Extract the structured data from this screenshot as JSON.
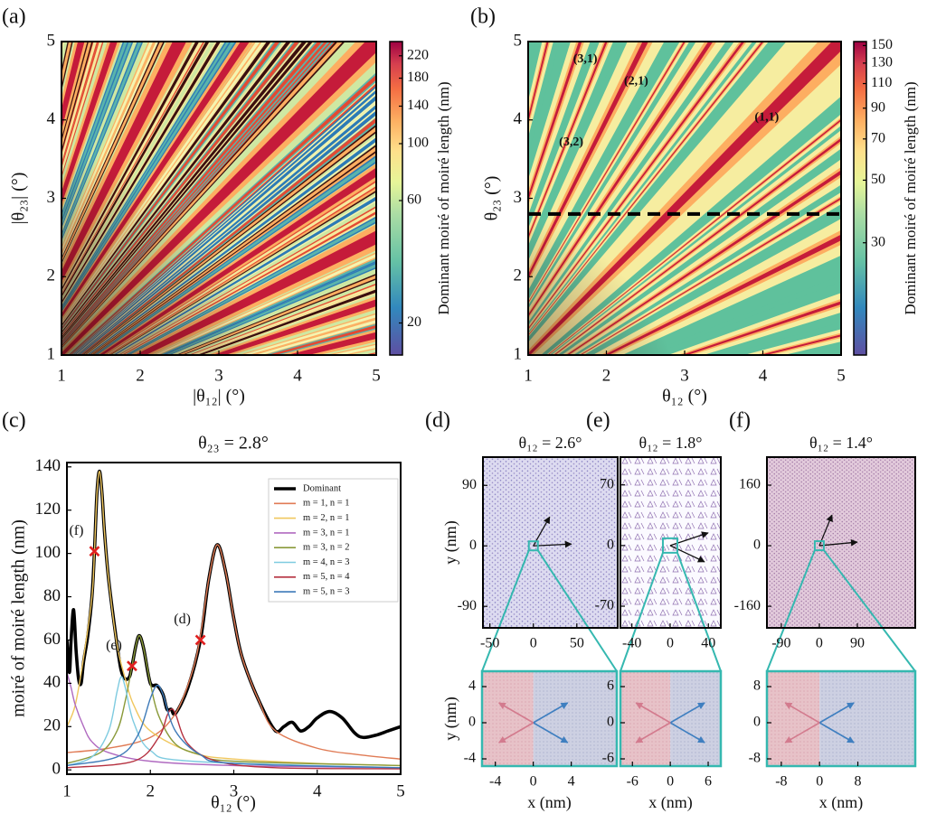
{
  "chart_data": [
    {
      "type": "contour",
      "panel": "(a)",
      "xlabel": "|θ₁₂| (°)",
      "ylabel": "|θ₂₃| (°)",
      "xlim": [
        1,
        5
      ],
      "ylim": [
        1,
        5
      ],
      "xticks": [
        1,
        2,
        3,
        4,
        5
      ],
      "yticks": [
        1,
        2,
        3,
        4,
        5
      ],
      "colorbar": {
        "label": "Dominant moiré of moiré length (nm)",
        "lim": [
          15,
          250
        ],
        "ticks": [
          20,
          60,
          100,
          140,
          180,
          220
        ],
        "scale": "log"
      }
    },
    {
      "type": "contour",
      "panel": "(b)",
      "xlabel": "θ₁₂ (°)",
      "ylabel": "θ₂₃ (°)",
      "xlim": [
        1,
        5
      ],
      "ylim": [
        1,
        5
      ],
      "xticks": [
        1,
        2,
        3,
        4,
        5
      ],
      "yticks": [
        1,
        2,
        3,
        4,
        5
      ],
      "hline": 2.8,
      "annotations": [
        {
          "text": "(3,1)",
          "x": 1.73,
          "y": 4.77,
          "color": "#111111"
        },
        {
          "text": "(2,1)",
          "x": 2.38,
          "y": 4.49,
          "color": "#111111"
        },
        {
          "text": "(1,1)",
          "x": 4.05,
          "y": 4.03,
          "color": "#111111"
        },
        {
          "text": "(3,2)",
          "x": 1.55,
          "y": 3.71,
          "color": "#ffffff"
        }
      ],
      "colorbar": {
        "label": "Dominant moiré of moiré length (nm)",
        "lim": [
          12,
          155
        ],
        "ticks": [
          30,
          50,
          70,
          90,
          110,
          130,
          150
        ],
        "scale": "log"
      }
    },
    {
      "type": "line",
      "panel": "(c)",
      "title": "θ₂₃ = 2.8°",
      "xlabel": "θ₁₂ (°)",
      "ylabel": "moiré of moiré length (nm)",
      "xlim": [
        1,
        5
      ],
      "ylim": [
        -2,
        142
      ],
      "xticks": [
        1,
        2,
        3,
        4,
        5
      ],
      "yticks": [
        0,
        20,
        40,
        60,
        80,
        100,
        120,
        140
      ],
      "legend": "upper right",
      "series": [
        {
          "name": "Dominant",
          "color": "#000000",
          "x": [
            1,
            1.03,
            1.05,
            1.08,
            1.11,
            1.14,
            1.17,
            1.2,
            1.25,
            1.3,
            1.33,
            1.36,
            1.39,
            1.42,
            1.45,
            1.5,
            1.6,
            1.65,
            1.7,
            1.75,
            1.78,
            1.83,
            1.87,
            1.92,
            2,
            2.08,
            2.15,
            2.2,
            2.25,
            2.3,
            2.45,
            2.6,
            2.7,
            2.8,
            2.9,
            3,
            3.1,
            3.3,
            3.5,
            3.6,
            3.7,
            3.8,
            3.9,
            4,
            4.15,
            4.3,
            4.45,
            4.55,
            4.7,
            4.85,
            5
          ],
          "values": [
            60,
            45,
            60,
            74,
            55,
            42,
            40,
            50,
            62,
            80,
            101,
            128,
            138,
            128,
            110,
            88,
            58,
            46,
            42,
            43,
            48,
            58,
            62,
            56,
            40,
            39,
            35,
            28,
            28,
            26,
            38,
            60,
            88,
            104,
            92,
            70,
            52,
            32,
            18,
            20,
            22,
            18,
            20,
            24,
            27,
            24,
            17,
            15,
            16,
            18,
            20
          ]
        },
        {
          "name": "m = 1, n = 1",
          "color": "#e07b55",
          "x": [
            1,
            1.5,
            2,
            2.3,
            2.5,
            2.6,
            2.7,
            2.8,
            2.9,
            3,
            3.1,
            3.3,
            3.5,
            4,
            4.5,
            5
          ],
          "values": [
            8,
            10,
            15,
            26,
            45,
            62,
            88,
            104,
            92,
            70,
            52,
            32,
            18,
            10,
            7,
            5
          ]
        },
        {
          "name": "m = 2, n = 1",
          "color": "#f0c75e",
          "x": [
            1,
            1.1,
            1.2,
            1.3,
            1.33,
            1.36,
            1.39,
            1.42,
            1.45,
            1.5,
            1.6,
            1.7,
            1.8,
            2,
            2.5,
            3,
            4,
            5
          ],
          "values": [
            20,
            30,
            52,
            80,
            101,
            128,
            138,
            128,
            110,
            88,
            58,
            42,
            30,
            18,
            8,
            5,
            3,
            2
          ]
        },
        {
          "name": "m = 3, n = 1",
          "color": "#b06ac0",
          "x": [
            1,
            1.05,
            1.1,
            1.2,
            1.3,
            1.5,
            2,
            3,
            5
          ],
          "values": [
            45,
            38,
            30,
            20,
            13,
            8,
            4,
            2,
            1
          ]
        },
        {
          "name": "m = 3, n = 2",
          "color": "#8a9a3a",
          "x": [
            1,
            1.4,
            1.6,
            1.7,
            1.78,
            1.83,
            1.87,
            1.92,
            2,
            2.1,
            2.3,
            2.6,
            3,
            5
          ],
          "values": [
            3,
            8,
            18,
            32,
            48,
            58,
            62,
            56,
            40,
            25,
            12,
            7,
            4,
            2
          ]
        },
        {
          "name": "m = 4, n = 3",
          "color": "#7ecbe0",
          "x": [
            1,
            1.3,
            1.5,
            1.6,
            1.65,
            1.7,
            1.8,
            2,
            2.5,
            5
          ],
          "values": [
            2,
            6,
            18,
            36,
            43,
            38,
            22,
            9,
            4,
            1
          ]
        },
        {
          "name": "m = 5, n = 4",
          "color": "#b5303f",
          "x": [
            1,
            1.8,
            2.1,
            2.2,
            2.25,
            2.3,
            2.45,
            2.8,
            3.5,
            5
          ],
          "values": [
            1,
            4,
            15,
            25,
            28,
            26,
            12,
            4,
            1,
            0.5
          ]
        },
        {
          "name": "m = 5, n = 3",
          "color": "#3d7ab8",
          "x": [
            1,
            1.6,
            1.85,
            2,
            2.08,
            2.15,
            2.3,
            2.6,
            3,
            5
          ],
          "values": [
            2,
            6,
            16,
            33,
            39,
            35,
            18,
            7,
            3,
            1
          ]
        }
      ],
      "markers": [
        {
          "label": "(f)",
          "x": 1.33,
          "y": 101
        },
        {
          "label": "(e)",
          "x": 1.78,
          "y": 48
        },
        {
          "label": "(d)",
          "x": 2.6,
          "y": 60
        }
      ]
    },
    {
      "type": "image",
      "panel": "(d)",
      "title": "θ₁₂ = 2.6°",
      "ylabel": "y (nm)",
      "xlim": [
        -58,
        97
      ],
      "ylim": [
        -122,
        132
      ],
      "xticks": [
        -50,
        0,
        50
      ],
      "yticks": [
        -90,
        0,
        90
      ],
      "inset": {
        "xlabel": "x (nm)",
        "ylabel": "y (nm)",
        "xlim": [
          -5.4,
          8.8
        ],
        "ylim": [
          -4.8,
          5.7
        ],
        "xticks": [
          -4,
          0,
          4
        ],
        "yticks": [
          -4,
          0,
          4
        ]
      }
    },
    {
      "type": "image",
      "panel": "(e)",
      "title": "θ₁₂ = 1.8°",
      "xlim": [
        -52,
        53
      ],
      "ylim": [
        -95,
        102
      ],
      "xticks": [
        -40,
        0,
        40
      ],
      "yticks": [
        -70,
        0,
        70
      ],
      "inset": {
        "xlabel": "x (nm)",
        "xlim": [
          -7.9,
          8
        ],
        "ylim": [
          -7.2,
          8.55
        ],
        "xticks": [
          -6,
          0,
          6
        ],
        "yticks": [
          -6,
          0,
          6
        ]
      }
    },
    {
      "type": "image",
      "panel": "(f)",
      "title": "θ₁₂ = 1.4°",
      "xlim": [
        -124,
        227
      ],
      "ylim": [
        -217,
        234
      ],
      "xticks": [
        -90,
        0,
        90
      ],
      "yticks": [
        -160,
        0,
        160
      ],
      "inset": {
        "xlabel": "x (nm)",
        "xlim": [
          -11,
          20
        ],
        "ylim": [
          -9.6,
          11.4
        ],
        "xticks": [
          -8,
          0,
          8
        ],
        "yticks": [
          -8,
          0,
          8
        ]
      }
    }
  ]
}
